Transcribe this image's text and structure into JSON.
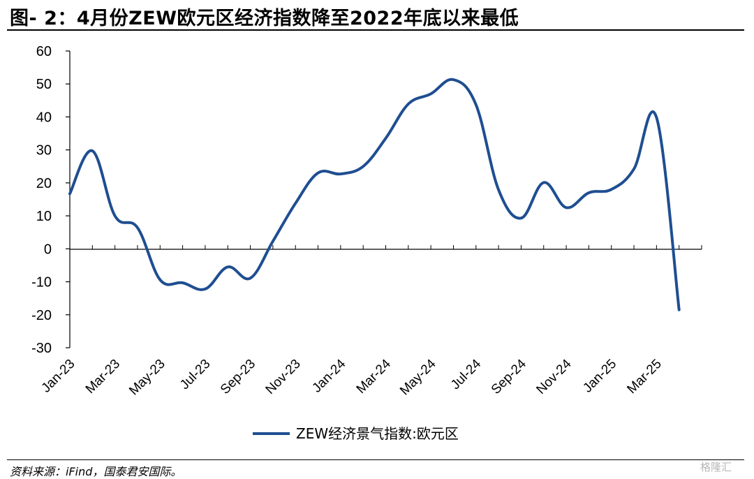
{
  "title": "图- 2：4月份ZEW欧元区经济指数降至2022年底以来最低",
  "source": "资料来源：iFind，国泰君安国际。",
  "watermark": "格隆汇",
  "chart_data": {
    "type": "line",
    "ylim": [
      -30,
      60
    ],
    "yticks": [
      "60",
      "50",
      "40",
      "30",
      "20",
      "10",
      "0",
      "-10",
      "-20",
      "-30"
    ],
    "x": [
      "Jan-23",
      "Feb-23",
      "Mar-23",
      "Apr-23",
      "May-23",
      "Jun-23",
      "Jul-23",
      "Aug-23",
      "Sep-23",
      "Oct-23",
      "Nov-23",
      "Dec-23",
      "Jan-24",
      "Feb-24",
      "Mar-24",
      "Apr-24",
      "May-24",
      "Jun-24",
      "Jul-24",
      "Aug-24",
      "Sep-24",
      "Oct-24",
      "Nov-24",
      "Dec-24",
      "Jan-25",
      "Feb-25",
      "Mar-25",
      "Apr-25"
    ],
    "xtick_labels": [
      "Jan-23",
      "Mar-23",
      "May-23",
      "Jul-23",
      "Sep-23",
      "Nov-23",
      "Jan-24",
      "Mar-24",
      "May-24",
      "Jul-24",
      "Sep-24",
      "Nov-24",
      "Jan-25",
      "Mar-25"
    ],
    "series": [
      {
        "name": "ZEW经济景气指数:欧元区",
        "color": "#1f4e91",
        "values": [
          16.7,
          29.7,
          10.0,
          6.4,
          -9.4,
          -10.3,
          -12.2,
          -5.5,
          -8.9,
          2.3,
          13.8,
          23.0,
          22.7,
          25.0,
          33.5,
          43.9,
          47.0,
          51.3,
          43.7,
          17.9,
          9.3,
          20.1,
          12.5,
          17.0,
          18.0,
          24.2,
          39.8,
          -18.5
        ]
      }
    ],
    "legend": {
      "position": "bottom-center"
    },
    "grid": false
  }
}
